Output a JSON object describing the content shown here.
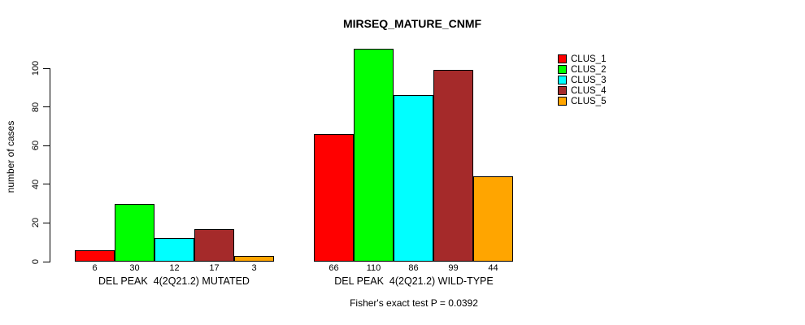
{
  "chart_data": {
    "type": "bar",
    "title": "MIRSEQ_MATURE_CNMF",
    "ylabel": "number of cases",
    "ylim": [
      0,
      100
    ],
    "yticks": [
      0,
      20,
      40,
      60,
      80,
      100
    ],
    "grid": false,
    "legend_position": "right",
    "legend": [
      {
        "name": "CLUS_1",
        "color": "#FF0000"
      },
      {
        "name": "CLUS_2",
        "color": "#00FF00"
      },
      {
        "name": "CLUS_3",
        "color": "#00FFFF"
      },
      {
        "name": "CLUS_4",
        "color": "#A52A2A"
      },
      {
        "name": "CLUS_5",
        "color": "#FFA500"
      }
    ],
    "groups": [
      {
        "label": "DEL PEAK  4(2Q21.2) MUTATED",
        "values": [
          6,
          30,
          12,
          17,
          3
        ]
      },
      {
        "label": "DEL PEAK  4(2Q21.2) WILD-TYPE",
        "values": [
          66,
          110,
          86,
          99,
          44
        ]
      }
    ],
    "bar_border_color": "#000000",
    "annotation": "Fisher's exact test P = 0.0392"
  }
}
